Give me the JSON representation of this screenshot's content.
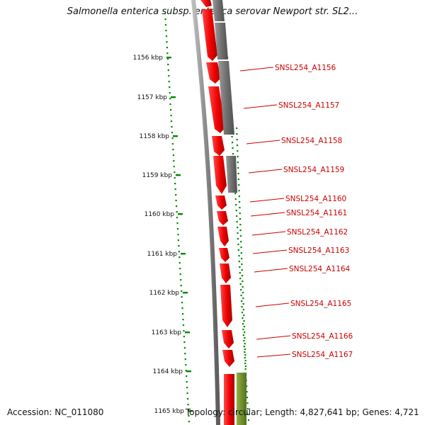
{
  "title": "Salmonella enterica subsp. enterica serovar Newport str. SL2...",
  "kbp_labels": [
    "1156 kbp",
    "1157 kbp",
    "1158 kbp",
    "1159 kbp",
    "1160 kbp",
    "1161 kbp",
    "1162 kbp",
    "1163 kbp",
    "1164 kbp",
    "1165 kbp"
  ],
  "gene_labels": [
    "SNSL254_A1156",
    "SNSL254_A1157",
    "SNSL254_A1158",
    "SNSL254_A1159",
    "SNSL254_A1160",
    "SNSL254_A1161",
    "SNSL254_A1162",
    "SNSL254_A1163",
    "SNSL254_A1164",
    "SNSL254_A1165",
    "SNSL254_A1166",
    "SNSL254_A1167"
  ],
  "footer": {
    "accession": "Accession: NC_011080",
    "topology": "Topology: circular; Length: 4,827,641 bp; Genes: 4,721"
  },
  "colors": {
    "cds_forward": "#ff0000",
    "cds_gray": "#777777",
    "cds_green": "#6b8e23",
    "ticks": "#008800",
    "backbone": "#888888",
    "label": "#cc0000"
  }
}
